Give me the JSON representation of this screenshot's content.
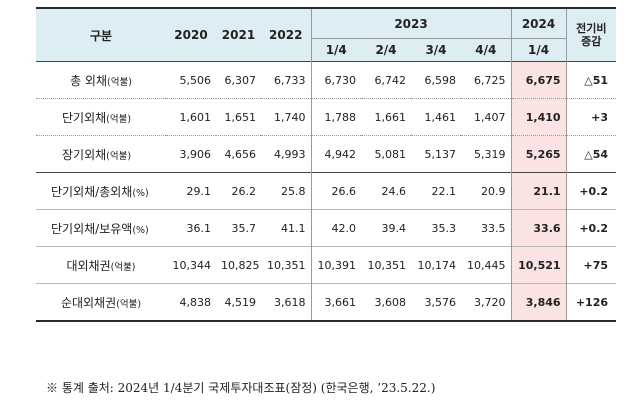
{
  "header": {
    "category": "구분",
    "years": [
      "2020",
      "2021",
      "2022"
    ],
    "year_2023": "2023",
    "quarters_2023": [
      "1/4",
      "2/4",
      "3/4",
      "4/4"
    ],
    "year_2024": "2024",
    "quarter_2024": "1/4",
    "change_line1": "전기비",
    "change_line2": "증감"
  },
  "rows": [
    {
      "label": "총 외채",
      "unit": "(억불)",
      "values": [
        "5,506",
        "6,307",
        "6,733",
        "6,730",
        "6,742",
        "6,598",
        "6,725"
      ],
      "current": "6,675",
      "change": "△51"
    },
    {
      "label": "단기외채",
      "unit": "(억불)",
      "values": [
        "1,601",
        "1,651",
        "1,740",
        "1,788",
        "1,661",
        "1,461",
        "1,407"
      ],
      "current": "1,410",
      "change": "+3"
    },
    {
      "label": "장기외채",
      "unit": "(억불)",
      "values": [
        "3,906",
        "4,656",
        "4,993",
        "4,942",
        "5,081",
        "5,137",
        "5,319"
      ],
      "current": "5,265",
      "change": "△54"
    },
    {
      "label": "단기외채/총외채",
      "unit": "(%)",
      "values": [
        "29.1",
        "26.2",
        "25.8",
        "26.6",
        "24.6",
        "22.1",
        "20.9"
      ],
      "current": "21.1",
      "change": "+0.2"
    },
    {
      "label": "단기외채/보유액",
      "unit": "(%)",
      "values": [
        "36.1",
        "35.7",
        "41.1",
        "42.0",
        "39.4",
        "35.3",
        "33.5"
      ],
      "current": "33.6",
      "change": "+0.2"
    },
    {
      "label": "대외채권",
      "unit": "(억불)",
      "values": [
        "10,344",
        "10,825",
        "10,351",
        "10,391",
        "10,351",
        "10,174",
        "10,445"
      ],
      "current": "10,521",
      "change": "+75"
    },
    {
      "label": "순대외채권",
      "unit": "(억불)",
      "values": [
        "4,838",
        "4,519",
        "3,618",
        "3,661",
        "3,608",
        "3,576",
        "3,720"
      ],
      "current": "3,846",
      "change": "+126"
    }
  ],
  "footnote": "※ 통계 출처: 2024년 1/4분기 국제투자대조표(잠정) (한국은행, ’23.5.22.)",
  "colors": {
    "header_bg": "#dcedf4",
    "highlight_bg": "#fbe3e4"
  }
}
